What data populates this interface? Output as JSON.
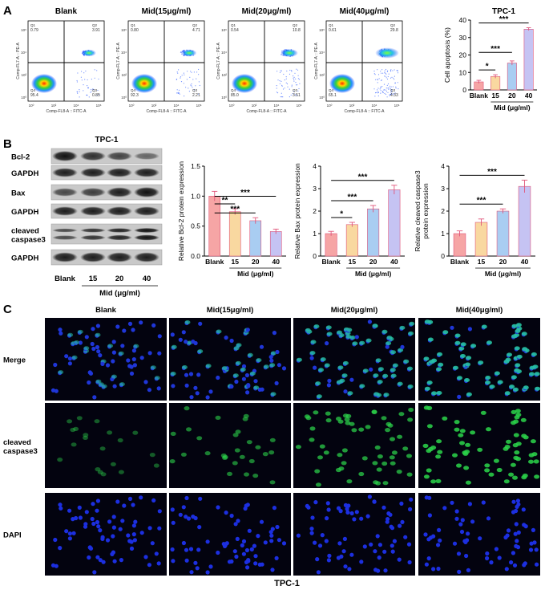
{
  "panel_letters": [
    "A",
    "B",
    "C"
  ],
  "flow": {
    "panels": [
      {
        "title": "Blank",
        "q1": "0.79",
        "q2": "3.91",
        "q3": "0.85",
        "q4": "95.4",
        "apop": 0.047
      },
      {
        "title": "Mid(15μg/ml)",
        "q1": "0.80",
        "q2": "4.71",
        "q3": "2.21",
        "q4": "92.3",
        "apop": 0.069
      },
      {
        "title": "Mid(20μg/ml)",
        "q1": "0.54",
        "q2": "10.8",
        "q3": "3.51",
        "q4": "85.0",
        "apop": 0.143
      },
      {
        "title": "Mid(40μg/ml)",
        "q1": "0.61",
        "q2": "29.8",
        "q3": "4.33",
        "q4": "65.1",
        "apop": 0.341
      }
    ],
    "xlabel": "Comp-FL8-A :: FITC-A",
    "ylabel": "Comp-FL7-A :: PE-A",
    "tick_labels": [
      "10⁰",
      "10²",
      "10⁴",
      "10⁶"
    ]
  },
  "wb": {
    "title": "TPC-1",
    "bands": [
      "Bcl-2",
      "GAPDH",
      "Bax",
      "GAPDH",
      "cleaved\ncaspase3",
      "GAPDH"
    ],
    "lanes": [
      "Blank",
      "15",
      "20",
      "40"
    ],
    "xlabel": "Mid (μg/ml)",
    "intensities": {
      "bcl2": [
        1.0,
        0.75,
        0.6,
        0.3
      ],
      "bax": [
        0.55,
        0.65,
        0.9,
        1.0
      ],
      "cc3": [
        0.5,
        0.7,
        0.85,
        1.0
      ]
    }
  },
  "chart_data": [
    {
      "type": "bar",
      "title": "TPC-1",
      "categories": [
        "Blank",
        "15",
        "20",
        "40"
      ],
      "values": [
        4.6,
        7.7,
        15.4,
        34.8
      ],
      "errors": [
        0.9,
        1.0,
        1.2,
        0.8
      ],
      "xlabel": "Mid (μg/ml)",
      "ylabel": "Cell apoptosis (%)",
      "ylim": [
        0,
        40
      ],
      "yticks": [
        0,
        10,
        20,
        30,
        40
      ],
      "colors": [
        "#f6a5a5",
        "#f9d8a0",
        "#a9cdf2",
        "#c5c3f3"
      ],
      "significance": [
        "*",
        "***",
        "***"
      ]
    },
    {
      "type": "bar",
      "categories": [
        "Blank",
        "15",
        "20",
        "40"
      ],
      "values": [
        1.0,
        0.74,
        0.59,
        0.41
      ],
      "errors": [
        0.08,
        0.05,
        0.05,
        0.04
      ],
      "xlabel": "Mid (μg/ml)",
      "ylabel": "Relative Bcl-2 protein expression",
      "ylim": [
        0,
        1.5
      ],
      "yticks": [
        0.0,
        0.5,
        1.0,
        1.5
      ],
      "colors": [
        "#f6a5a5",
        "#f9d8a0",
        "#a9cdf2",
        "#c5c3f3"
      ],
      "significance": [
        "**",
        "***",
        "***"
      ]
    },
    {
      "type": "bar",
      "categories": [
        "Blank",
        "15",
        "20",
        "40"
      ],
      "values": [
        1.0,
        1.4,
        2.1,
        2.95
      ],
      "errors": [
        0.1,
        0.1,
        0.15,
        0.2
      ],
      "xlabel": "Mid (μg/ml)",
      "ylabel": "Relative Bax protein expression",
      "ylim": [
        0,
        4
      ],
      "yticks": [
        0,
        1,
        2,
        3,
        4
      ],
      "colors": [
        "#f6a5a5",
        "#f9d8a0",
        "#a9cdf2",
        "#c5c3f3"
      ],
      "significance": [
        "*",
        "***",
        "***"
      ]
    },
    {
      "type": "bar",
      "categories": [
        "Blank",
        "15",
        "20",
        "40"
      ],
      "values": [
        1.0,
        1.5,
        2.0,
        3.1
      ],
      "errors": [
        0.12,
        0.15,
        0.1,
        0.28
      ],
      "xlabel": "Mid (μg/ml)",
      "ylabel": "Relative cleaved caspase3\nprotein expression",
      "ylim": [
        0,
        4
      ],
      "yticks": [
        0,
        1,
        2,
        3,
        4
      ],
      "colors": [
        "#f6a5a5",
        "#f9d8a0",
        "#a9cdf2",
        "#c5c3f3"
      ],
      "significance": [
        "***",
        "***"
      ]
    }
  ],
  "micro": {
    "columns": [
      "Blank",
      "Mid(15μg/ml)",
      "Mid(20μg/ml)",
      "Mid(40μg/ml)"
    ],
    "rows": [
      "Merge",
      "cleaved\ncaspase3",
      "DAPI"
    ],
    "green_level": [
      0.15,
      0.45,
      0.7,
      0.95
    ],
    "caption": "TPC-1"
  }
}
